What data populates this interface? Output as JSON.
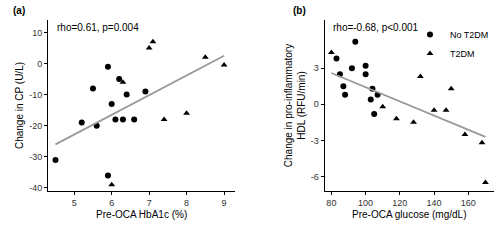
{
  "chart_data": [
    {
      "type": "scatter",
      "title": "(a)",
      "x_label": "Pre-OCA HbA1c (%)",
      "y_label": "Change in CP (U/L)",
      "annotations": [
        {
          "text": "rho=0.61, p=0.004"
        }
      ],
      "xlim": [
        4.3,
        9.3
      ],
      "xticks": [
        5,
        6,
        7,
        8,
        9
      ],
      "ylim": [
        -41,
        14
      ],
      "yticks": [
        -40,
        -30,
        -20,
        -10,
        0,
        10
      ],
      "grid": false,
      "series": [
        {
          "name": "No T2DM",
          "marker": "circle",
          "color": "#000000",
          "x": [
            4.5,
            5.2,
            5.5,
            5.6,
            5.9,
            5.9,
            6.0,
            6.1,
            6.2,
            6.3,
            6.4,
            6.6,
            6.9
          ],
          "values": [
            -31,
            -19,
            -8,
            -20,
            -1,
            -36,
            -13,
            -18,
            -5,
            -18,
            -10,
            -18,
            -9
          ]
        },
        {
          "name": "T2DM",
          "marker": "triangle",
          "color": "#000000",
          "x": [
            6.0,
            6.3,
            7.0,
            7.1,
            7.4,
            8.0,
            8.5,
            9.0
          ],
          "values": [
            -39,
            -6,
            5,
            7,
            -18,
            -16,
            2,
            -0.5
          ]
        },
        {
          "type": "line",
          "line_style": "solid",
          "color": "#999999",
          "x": [
            4.5,
            9.0
          ],
          "values": [
            -26,
            2.5
          ]
        }
      ]
    },
    {
      "type": "scatter",
      "title": "(b)",
      "x_label": "Pre-OCA glucose (mg/dL)",
      "y_label": "Change in pro-inflammatory\nHDL (RFU/min)",
      "annotations": [
        {
          "text": "rho=-0.68, p<0.001"
        }
      ],
      "xlim": [
        76,
        175
      ],
      "xticks": [
        80,
        100,
        120,
        140,
        160
      ],
      "ylim": [
        -7.2,
        7
      ],
      "yticks": [
        -6,
        -3,
        0,
        3
      ],
      "grid": false,
      "legend": "upper right",
      "series": [
        {
          "name": "No T2DM",
          "marker": "circle",
          "color": "#000000",
          "x": [
            83,
            85,
            87,
            88,
            92,
            94,
            100,
            100,
            103,
            104,
            105,
            107
          ],
          "values": [
            3.8,
            2.5,
            1.5,
            0.8,
            3.0,
            5.2,
            3.2,
            2.5,
            0.4,
            1.3,
            -0.8,
            0.8
          ]
        },
        {
          "name": "T2DM",
          "marker": "triangle",
          "color": "#000000",
          "x": [
            80,
            110,
            118,
            128,
            132,
            140,
            147,
            150,
            158,
            168,
            170
          ],
          "values": [
            4.3,
            -0.2,
            -1.2,
            -1.5,
            2.3,
            -0.5,
            -0.5,
            1.3,
            -2.5,
            -3.2,
            -6.5
          ]
        },
        {
          "type": "line",
          "line_style": "solid",
          "color": "#999999",
          "x": [
            80,
            170
          ],
          "values": [
            2.6,
            -2.7
          ]
        }
      ]
    }
  ]
}
